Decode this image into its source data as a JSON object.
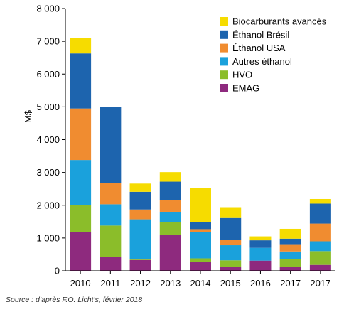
{
  "chart_data": {
    "type": "bar",
    "stacked": true,
    "ylabel": "M$",
    "xlabel": "",
    "ylim": [
      0,
      8000
    ],
    "yticks": [
      0,
      1000,
      2000,
      3000,
      4000,
      5000,
      6000,
      7000,
      8000
    ],
    "ytick_labels": [
      "0",
      "1 000",
      "2 000",
      "3 000",
      "4 000",
      "5 000",
      "6 000",
      "7 000",
      "8 000"
    ],
    "categories": [
      "2010",
      "2011",
      "2012",
      "2013",
      "2014",
      "2015",
      "2016",
      "2017",
      "2017"
    ],
    "grid": false,
    "legend_position": "top-right",
    "series": [
      {
        "name": "EMAG",
        "color": "#8e2a7e",
        "values": [
          1180,
          430,
          330,
          1100,
          260,
          120,
          310,
          130,
          180
        ]
      },
      {
        "name": "HVO",
        "color": "#8bbd2a",
        "values": [
          820,
          950,
          20,
          380,
          120,
          200,
          0,
          230,
          420
        ]
      },
      {
        "name": "Autres éthanol",
        "color": "#1aa1dc",
        "values": [
          1380,
          650,
          1220,
          320,
          800,
          460,
          390,
          230,
          300
        ]
      },
      {
        "name": "Éthanol USA",
        "color": "#f08c30",
        "values": [
          1570,
          650,
          300,
          350,
          90,
          160,
          0,
          200,
          540
        ]
      },
      {
        "name": "Éthanol Brésil",
        "color": "#1d64ae",
        "values": [
          1680,
          2320,
          540,
          570,
          220,
          670,
          230,
          190,
          610
        ]
      },
      {
        "name": "Biocarburants avancés",
        "color": "#f6dc00",
        "values": [
          470,
          0,
          250,
          290,
          1040,
          330,
          120,
          300,
          140
        ]
      }
    ],
    "legend_order": [
      "Biocarburants avancés",
      "Éthanol Brésil",
      "Éthanol USA",
      "Autres éthanol",
      "HVO",
      "EMAG"
    ]
  },
  "source_note": "Source : d’après F.O. Licht’s, février 2018"
}
